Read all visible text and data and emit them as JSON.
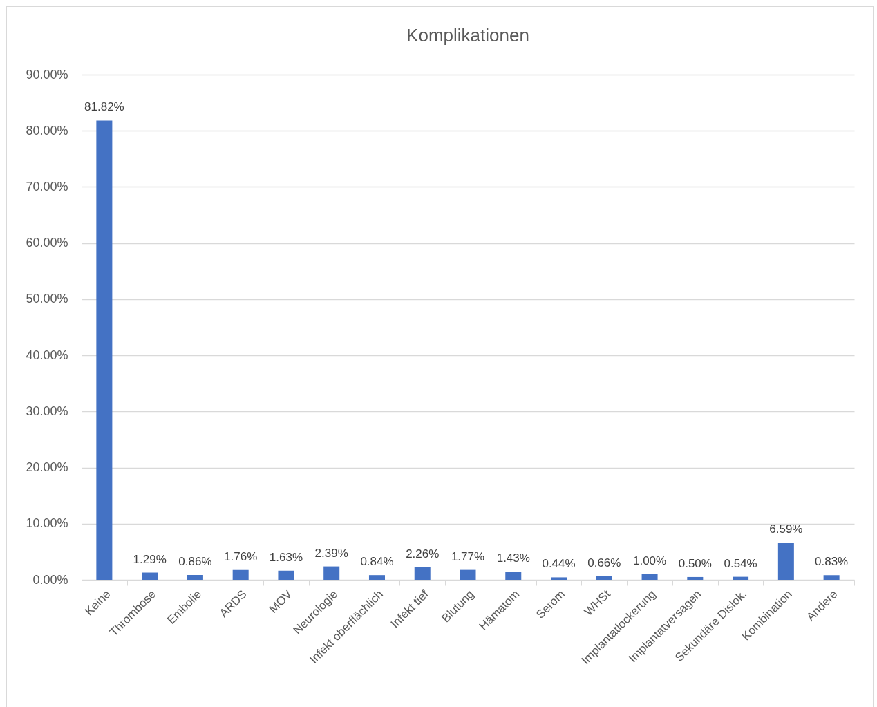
{
  "chart_data": {
    "type": "bar",
    "title": "Komplikationen",
    "categories": [
      "Keine",
      "Thrombose",
      "Embolie",
      "ARDS",
      "MOV",
      "Neurologie",
      "Infekt oberflächlich",
      "Infekt tief",
      "Blutung",
      "Hämatom",
      "Serom",
      "WHSt",
      "Implantatlockerung",
      "Implantatversagen",
      "Sekundäre Dislok.",
      "Kombination",
      "Andere"
    ],
    "values": [
      81.82,
      1.29,
      0.86,
      1.76,
      1.63,
      2.39,
      0.84,
      2.26,
      1.77,
      1.43,
      0.44,
      0.66,
      1.0,
      0.5,
      0.54,
      6.59,
      0.83
    ],
    "value_labels": [
      "81.82%",
      "1.29%",
      "0.86%",
      "1.76%",
      "1.63%",
      "2.39%",
      "0.84%",
      "2.26%",
      "1.77%",
      "1.43%",
      "0.44%",
      "0.66%",
      "1.00%",
      "0.50%",
      "0.54%",
      "6.59%",
      "0.83%"
    ],
    "color": "#4472c4",
    "ylim": [
      0,
      90
    ],
    "yticks": [
      {
        "value": 0,
        "label": "0.00%"
      },
      {
        "value": 10,
        "label": "10.00%"
      },
      {
        "value": 20,
        "label": "20.00%"
      },
      {
        "value": 30,
        "label": "30.00%"
      },
      {
        "value": 40,
        "label": "40.00%"
      },
      {
        "value": 50,
        "label": "50.00%"
      },
      {
        "value": 60,
        "label": "60.00%"
      },
      {
        "value": 70,
        "label": "70.00%"
      },
      {
        "value": 80,
        "label": "80.00%"
      },
      {
        "value": 90,
        "label": "90.00%"
      }
    ],
    "grid": "y"
  }
}
